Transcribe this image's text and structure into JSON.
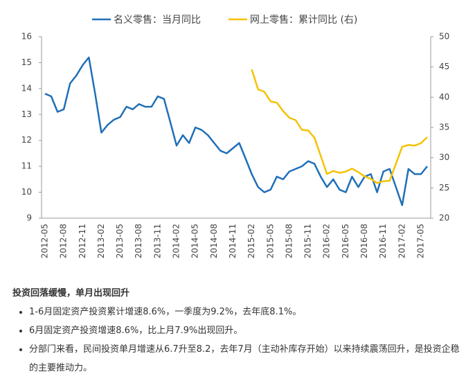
{
  "chart_data": {
    "type": "line",
    "categories": [
      "2012-05",
      null,
      null,
      "2012-08",
      null,
      null,
      "2012-11",
      null,
      null,
      "2013-02",
      null,
      null,
      "2013-05",
      null,
      null,
      "2013-08",
      null,
      null,
      "2013-11",
      null,
      null,
      "2014-02",
      null,
      null,
      "2014-05",
      null,
      null,
      "2014-08",
      null,
      null,
      "2014-11",
      null,
      null,
      "2015-02",
      null,
      null,
      "2015-05",
      null,
      null,
      "2015-08",
      null,
      null,
      "2015-11",
      null,
      null,
      "2016-02",
      null,
      null,
      "2016-05",
      null,
      null,
      "2016-08",
      null,
      null,
      "2016-11",
      null,
      null,
      "2017-02",
      null,
      null,
      "2017-05",
      null
    ],
    "series": [
      {
        "name": "名义零售：当月同比",
        "color": "#1f6fb8",
        "values": [
          13.8,
          13.7,
          13.1,
          13.2,
          14.2,
          14.5,
          14.9,
          15.2,
          13.8,
          12.3,
          12.6,
          12.8,
          12.9,
          13.3,
          13.2,
          13.4,
          13.3,
          13.3,
          13.7,
          13.6,
          12.7,
          11.8,
          12.2,
          11.9,
          12.5,
          12.4,
          12.2,
          11.9,
          11.6,
          11.5,
          11.7,
          11.9,
          11.3,
          10.7,
          10.2,
          10.0,
          10.1,
          10.6,
          10.5,
          10.8,
          10.9,
          11.0,
          11.2,
          11.1,
          10.6,
          10.2,
          10.5,
          10.1,
          10.0,
          10.6,
          10.2,
          10.6,
          10.7,
          10.0,
          10.8,
          10.9,
          10.2,
          9.5,
          10.9,
          10.7,
          10.7,
          11.0
        ]
      },
      {
        "name": "网上零售：累计同比 (右)",
        "color": "#f5c200",
        "axis": "y2",
        "values": [
          null,
          null,
          null,
          null,
          null,
          null,
          null,
          null,
          null,
          null,
          null,
          null,
          null,
          null,
          null,
          null,
          null,
          null,
          null,
          null,
          null,
          null,
          null,
          null,
          null,
          null,
          null,
          null,
          null,
          null,
          null,
          null,
          null,
          44.6,
          41.3,
          40.9,
          39.3,
          39.1,
          37.7,
          36.6,
          36.2,
          34.6,
          34.5,
          33.3,
          30.3,
          27.3,
          27.8,
          27.5,
          27.7,
          28.2,
          27.6,
          26.9,
          26.5,
          25.8,
          26.1,
          26.2,
          29.0,
          31.8,
          32.1,
          32.0,
          32.4,
          33.4
        ]
      }
    ],
    "ylim": [
      9,
      16
    ],
    "yticks": [
      9,
      10,
      11,
      12,
      13,
      14,
      15,
      16
    ],
    "y2lim": [
      20,
      50
    ],
    "y2ticks": [
      20,
      25,
      30,
      35,
      40,
      45,
      50
    ],
    "grid": false,
    "legend": "top"
  },
  "section": {
    "heading": "投资回落缓慢，单月出现回升",
    "bullets": [
      "1-6月固定资产投资累计增速8.6%，一季度为9.2%，去年底8.1%。",
      "6月固定资产投资增速8.6%，比上月7.9%出现回升。",
      "分部门来看，民间投资单月增速从6.7升至8.2，去年7月（主动补库存开始）以来持续震荡回升，是投资企稳的主要推动力。"
    ]
  }
}
